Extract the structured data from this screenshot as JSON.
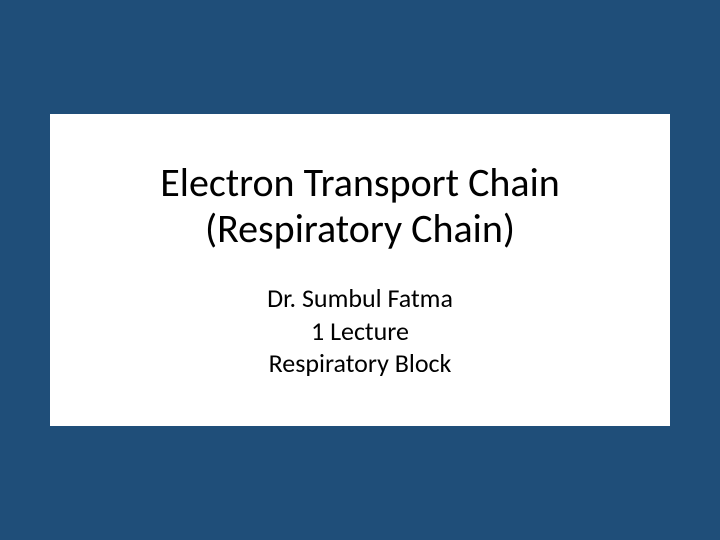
{
  "slide": {
    "background_color": "#1f4e79",
    "content_box_bg": "#ffffff",
    "title_line1": "Electron Transport Chain",
    "title_line2": "(Respiratory Chain)",
    "subtitle_line1": "Dr. Sumbul Fatma",
    "subtitle_line2": "1 Lecture",
    "subtitle_line3": "Respiratory Block",
    "title_fontsize": 40,
    "subtitle_fontsize": 26,
    "text_color": "#000000",
    "font_family": "Calibri"
  }
}
